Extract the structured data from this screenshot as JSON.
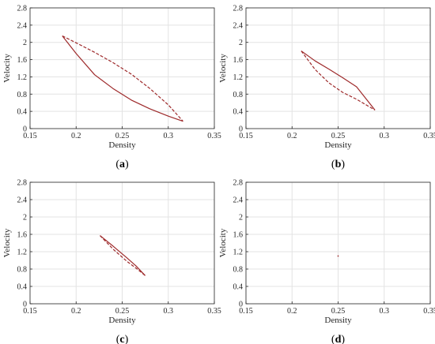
{
  "chart_data": [
    {
      "type": "line",
      "panel_label": "(a)",
      "panel_letter": "a",
      "xlabel": "Density",
      "ylabel": "Velocity",
      "xlim": [
        0.15,
        0.35
      ],
      "ylim": [
        0,
        2.8
      ],
      "xticks": [
        "0.15",
        "0.2",
        "0.25",
        "0.3",
        "0.35"
      ],
      "yticks": [
        "0",
        "0.4",
        "0.8",
        "1.2",
        "1.6",
        "2",
        "2.4",
        "2.8"
      ],
      "grid": true,
      "series": [
        {
          "style": "solid",
          "x": [
            0.185,
            0.2,
            0.22,
            0.24,
            0.26,
            0.28,
            0.3,
            0.316
          ],
          "y": [
            2.15,
            1.74,
            1.25,
            0.93,
            0.66,
            0.46,
            0.29,
            0.17
          ]
        },
        {
          "style": "dashed",
          "x": [
            0.185,
            0.2,
            0.22,
            0.24,
            0.26,
            0.28,
            0.3,
            0.316
          ],
          "y": [
            2.15,
            1.99,
            1.77,
            1.53,
            1.26,
            0.93,
            0.55,
            0.17
          ]
        }
      ]
    },
    {
      "type": "line",
      "panel_label": "(b)",
      "panel_letter": "b",
      "xlabel": "Density",
      "ylabel": "Velocity",
      "xlim": [
        0.15,
        0.35
      ],
      "ylim": [
        0,
        2.8
      ],
      "xticks": [
        "0.15",
        "0.2",
        "0.25",
        "0.3",
        "0.35"
      ],
      "yticks": [
        "0",
        "0.4",
        "0.8",
        "1.2",
        "1.6",
        "2",
        "2.4",
        "2.8"
      ],
      "grid": true,
      "series": [
        {
          "style": "solid",
          "x": [
            0.21,
            0.225,
            0.24,
            0.255,
            0.27,
            0.29
          ],
          "y": [
            1.8,
            1.57,
            1.38,
            1.18,
            0.97,
            0.43
          ]
        },
        {
          "style": "dashed",
          "x": [
            0.21,
            0.225,
            0.24,
            0.255,
            0.27,
            0.29
          ],
          "y": [
            1.8,
            1.37,
            1.06,
            0.84,
            0.68,
            0.43
          ]
        }
      ]
    },
    {
      "type": "line",
      "panel_label": "(c)",
      "panel_letter": "c",
      "xlabel": "Density",
      "ylabel": "Velocity",
      "xlim": [
        0.15,
        0.35
      ],
      "ylim": [
        0,
        2.8
      ],
      "xticks": [
        "0.15",
        "0.2",
        "0.25",
        "0.3",
        "0.35"
      ],
      "yticks": [
        "0",
        "0.4",
        "0.8",
        "1.2",
        "1.6",
        "2",
        "2.4",
        "2.8"
      ],
      "grid": true,
      "series": [
        {
          "style": "solid",
          "x": [
            0.226,
            0.24,
            0.255,
            0.265,
            0.275
          ],
          "y": [
            1.57,
            1.33,
            1.06,
            0.87,
            0.65
          ]
        },
        {
          "style": "dashed",
          "x": [
            0.226,
            0.24,
            0.255,
            0.265,
            0.275
          ],
          "y": [
            1.57,
            1.26,
            0.98,
            0.82,
            0.65
          ]
        }
      ]
    },
    {
      "type": "scatter",
      "panel_label": "(d)",
      "panel_letter": "d",
      "xlabel": "Density",
      "ylabel": "Velocity",
      "xlim": [
        0.15,
        0.35
      ],
      "ylim": [
        0,
        2.8
      ],
      "xticks": [
        "0.15",
        "0.2",
        "0.25",
        "0.3",
        "0.35"
      ],
      "yticks": [
        "0",
        "0.4",
        "0.8",
        "1.2",
        "1.6",
        "2",
        "2.4",
        "2.8"
      ],
      "grid": true,
      "series": [
        {
          "style": "point",
          "x": [
            0.25
          ],
          "y": [
            1.1
          ]
        }
      ]
    }
  ],
  "colors": {
    "curve": "#9e2a2b",
    "grid": "#e3e3e3",
    "axis": "#262626"
  }
}
